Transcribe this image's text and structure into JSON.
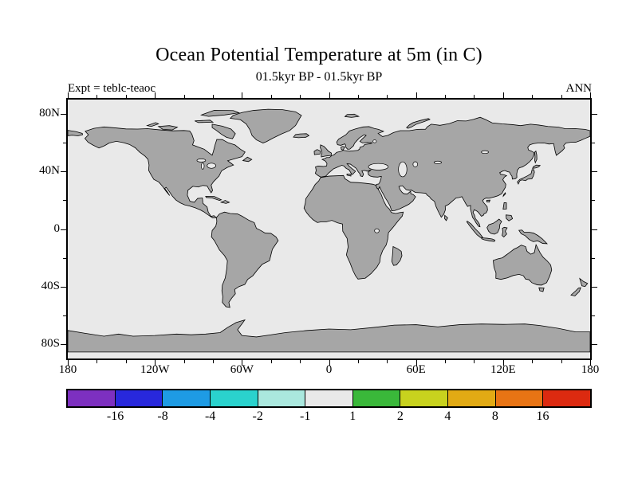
{
  "header": {
    "title": "Ocean Potential Temperature at 5m (in C)",
    "subtitle": "01.5kyr BP - 01.5kyr BP",
    "experiment": "Expt = teblc-teaoc",
    "season": "ANN"
  },
  "axes": {
    "x_tick_labels": [
      "180",
      "120W",
      "60W",
      "0",
      "60E",
      "120E",
      "180"
    ],
    "x_tick_lons": [
      -180,
      -120,
      -60,
      0,
      60,
      120,
      180
    ],
    "x_minor_step_deg": 20,
    "y_tick_labels": [
      "80N",
      "40N",
      "0",
      "40S",
      "80S"
    ],
    "y_tick_lats": [
      80,
      40,
      0,
      -40,
      -80
    ],
    "y_minor_step_deg": 20
  },
  "colorbar": {
    "boundary_labels": [
      "-16",
      "-8",
      "-4",
      "-2",
      "-1",
      "1",
      "2",
      "4",
      "8",
      "16"
    ],
    "segment_colors": [
      "#7d30c0",
      "#2828dc",
      "#1e9be4",
      "#2ad2cd",
      "#aae8de",
      "#e9e9e9",
      "#3ab83a",
      "#c8d21e",
      "#e2aa14",
      "#e87414",
      "#dc2a10"
    ]
  },
  "colors": {
    "land": "#a6a6a6",
    "ocean": "#e9e9e9",
    "coastline": "#000000",
    "frame": "#000000"
  },
  "chart_data": {
    "type": "heatmap",
    "subtype": "filled-contour world map (equirectangular)",
    "title": "Ocean Potential Temperature at 5m (in C)",
    "subtitle": "01.5kyr BP - 01.5kyr BP",
    "annotations": [
      "Expt = teblc-teaoc",
      "ANN"
    ],
    "x_tick_labels": [
      "180",
      "120W",
      "60W",
      "0",
      "60E",
      "120E",
      "180"
    ],
    "y_tick_labels": [
      "80N",
      "40N",
      "0",
      "40S",
      "80S"
    ],
    "x_range_deg": [
      -180,
      180
    ],
    "y_range_deg": [
      -90,
      90
    ],
    "units": "C",
    "colorbar_boundaries": [
      -16,
      -8,
      -4,
      -2,
      -1,
      1,
      2,
      4,
      8,
      16
    ],
    "colorbar_colors": [
      "#7d30c0",
      "#2828dc",
      "#1e9be4",
      "#2ad2cd",
      "#aae8de",
      "#e9e9e9",
      "#3ab83a",
      "#c8d21e",
      "#e2aa14",
      "#e87414",
      "#dc2a10"
    ],
    "field_summary": "Temperature difference field lies within the -1 to 1 C bin (light gray) over the entire ocean; land masses drawn in gray with black coastlines."
  }
}
